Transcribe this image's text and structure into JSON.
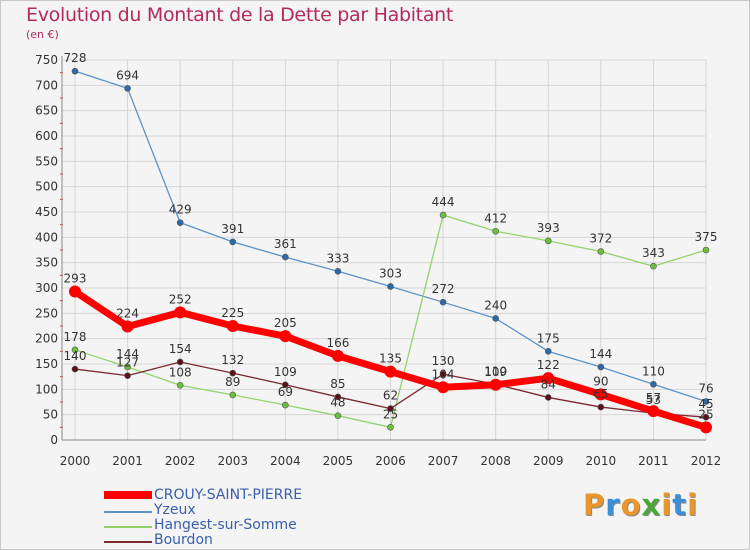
{
  "chart_data": {
    "type": "line",
    "title": "Evolution du Montant de la Dette par Habitant",
    "unit_label": "(en €)",
    "xlabel": "",
    "ylabel": "",
    "x": [
      "2000",
      "2001",
      "2002",
      "2003",
      "2004",
      "2005",
      "2006",
      "2007",
      "2008",
      "2009",
      "2010",
      "2011",
      "2012"
    ],
    "ylim": [
      0,
      750
    ],
    "yticks": [
      0,
      50,
      100,
      150,
      200,
      250,
      300,
      350,
      400,
      450,
      500,
      550,
      600,
      650,
      700,
      750
    ],
    "grid": true,
    "legend_position": "bottom-left",
    "series": [
      {
        "name": "Yzeux",
        "color": "#5b93c8",
        "marker": "#2c6aa8",
        "values": [
          728,
          694,
          429,
          391,
          361,
          333,
          303,
          272,
          240,
          175,
          144,
          110,
          76
        ]
      },
      {
        "name": "Hangest-sur-Somme",
        "color": "#93d46a",
        "marker": "#6cbf3a",
        "values": [
          178,
          144,
          108,
          89,
          69,
          48,
          25,
          444,
          412,
          393,
          372,
          343,
          375
        ]
      },
      {
        "name": "Bourdon",
        "color": "#7a2a30",
        "marker": "#5a1018",
        "values": [
          140,
          127,
          154,
          132,
          109,
          85,
          62,
          130,
          110,
          84,
          65,
          53,
          45
        ]
      },
      {
        "name": "CROUY-SAINT-PIERRE",
        "color": "#ff0000",
        "marker": "#ff0000",
        "values": [
          293,
          224,
          252,
          225,
          205,
          166,
          135,
          104,
          109,
          122,
          90,
          57,
          25
        ]
      }
    ],
    "legend": [
      {
        "name": "CROUY-SAINT-PIERRE",
        "color": "#ff0000",
        "thick": true
      },
      {
        "name": "Yzeux",
        "color": "#5b93c8",
        "thick": false
      },
      {
        "name": "Hangest-sur-Somme",
        "color": "#93d46a",
        "thick": false
      },
      {
        "name": "Bourdon",
        "color": "#7a2a30",
        "thick": false
      }
    ]
  },
  "brand": {
    "letters": [
      {
        "ch": "P",
        "color": "#e8962c"
      },
      {
        "ch": "r",
        "color": "#3b8fd6"
      },
      {
        "ch": "o",
        "color": "#e8962c"
      },
      {
        "ch": "x",
        "color": "#4aa83a"
      },
      {
        "ch": "i",
        "color": "#e8962c"
      },
      {
        "ch": "t",
        "color": "#3b8fd6"
      },
      {
        "ch": "i",
        "color": "#e8962c"
      }
    ]
  }
}
